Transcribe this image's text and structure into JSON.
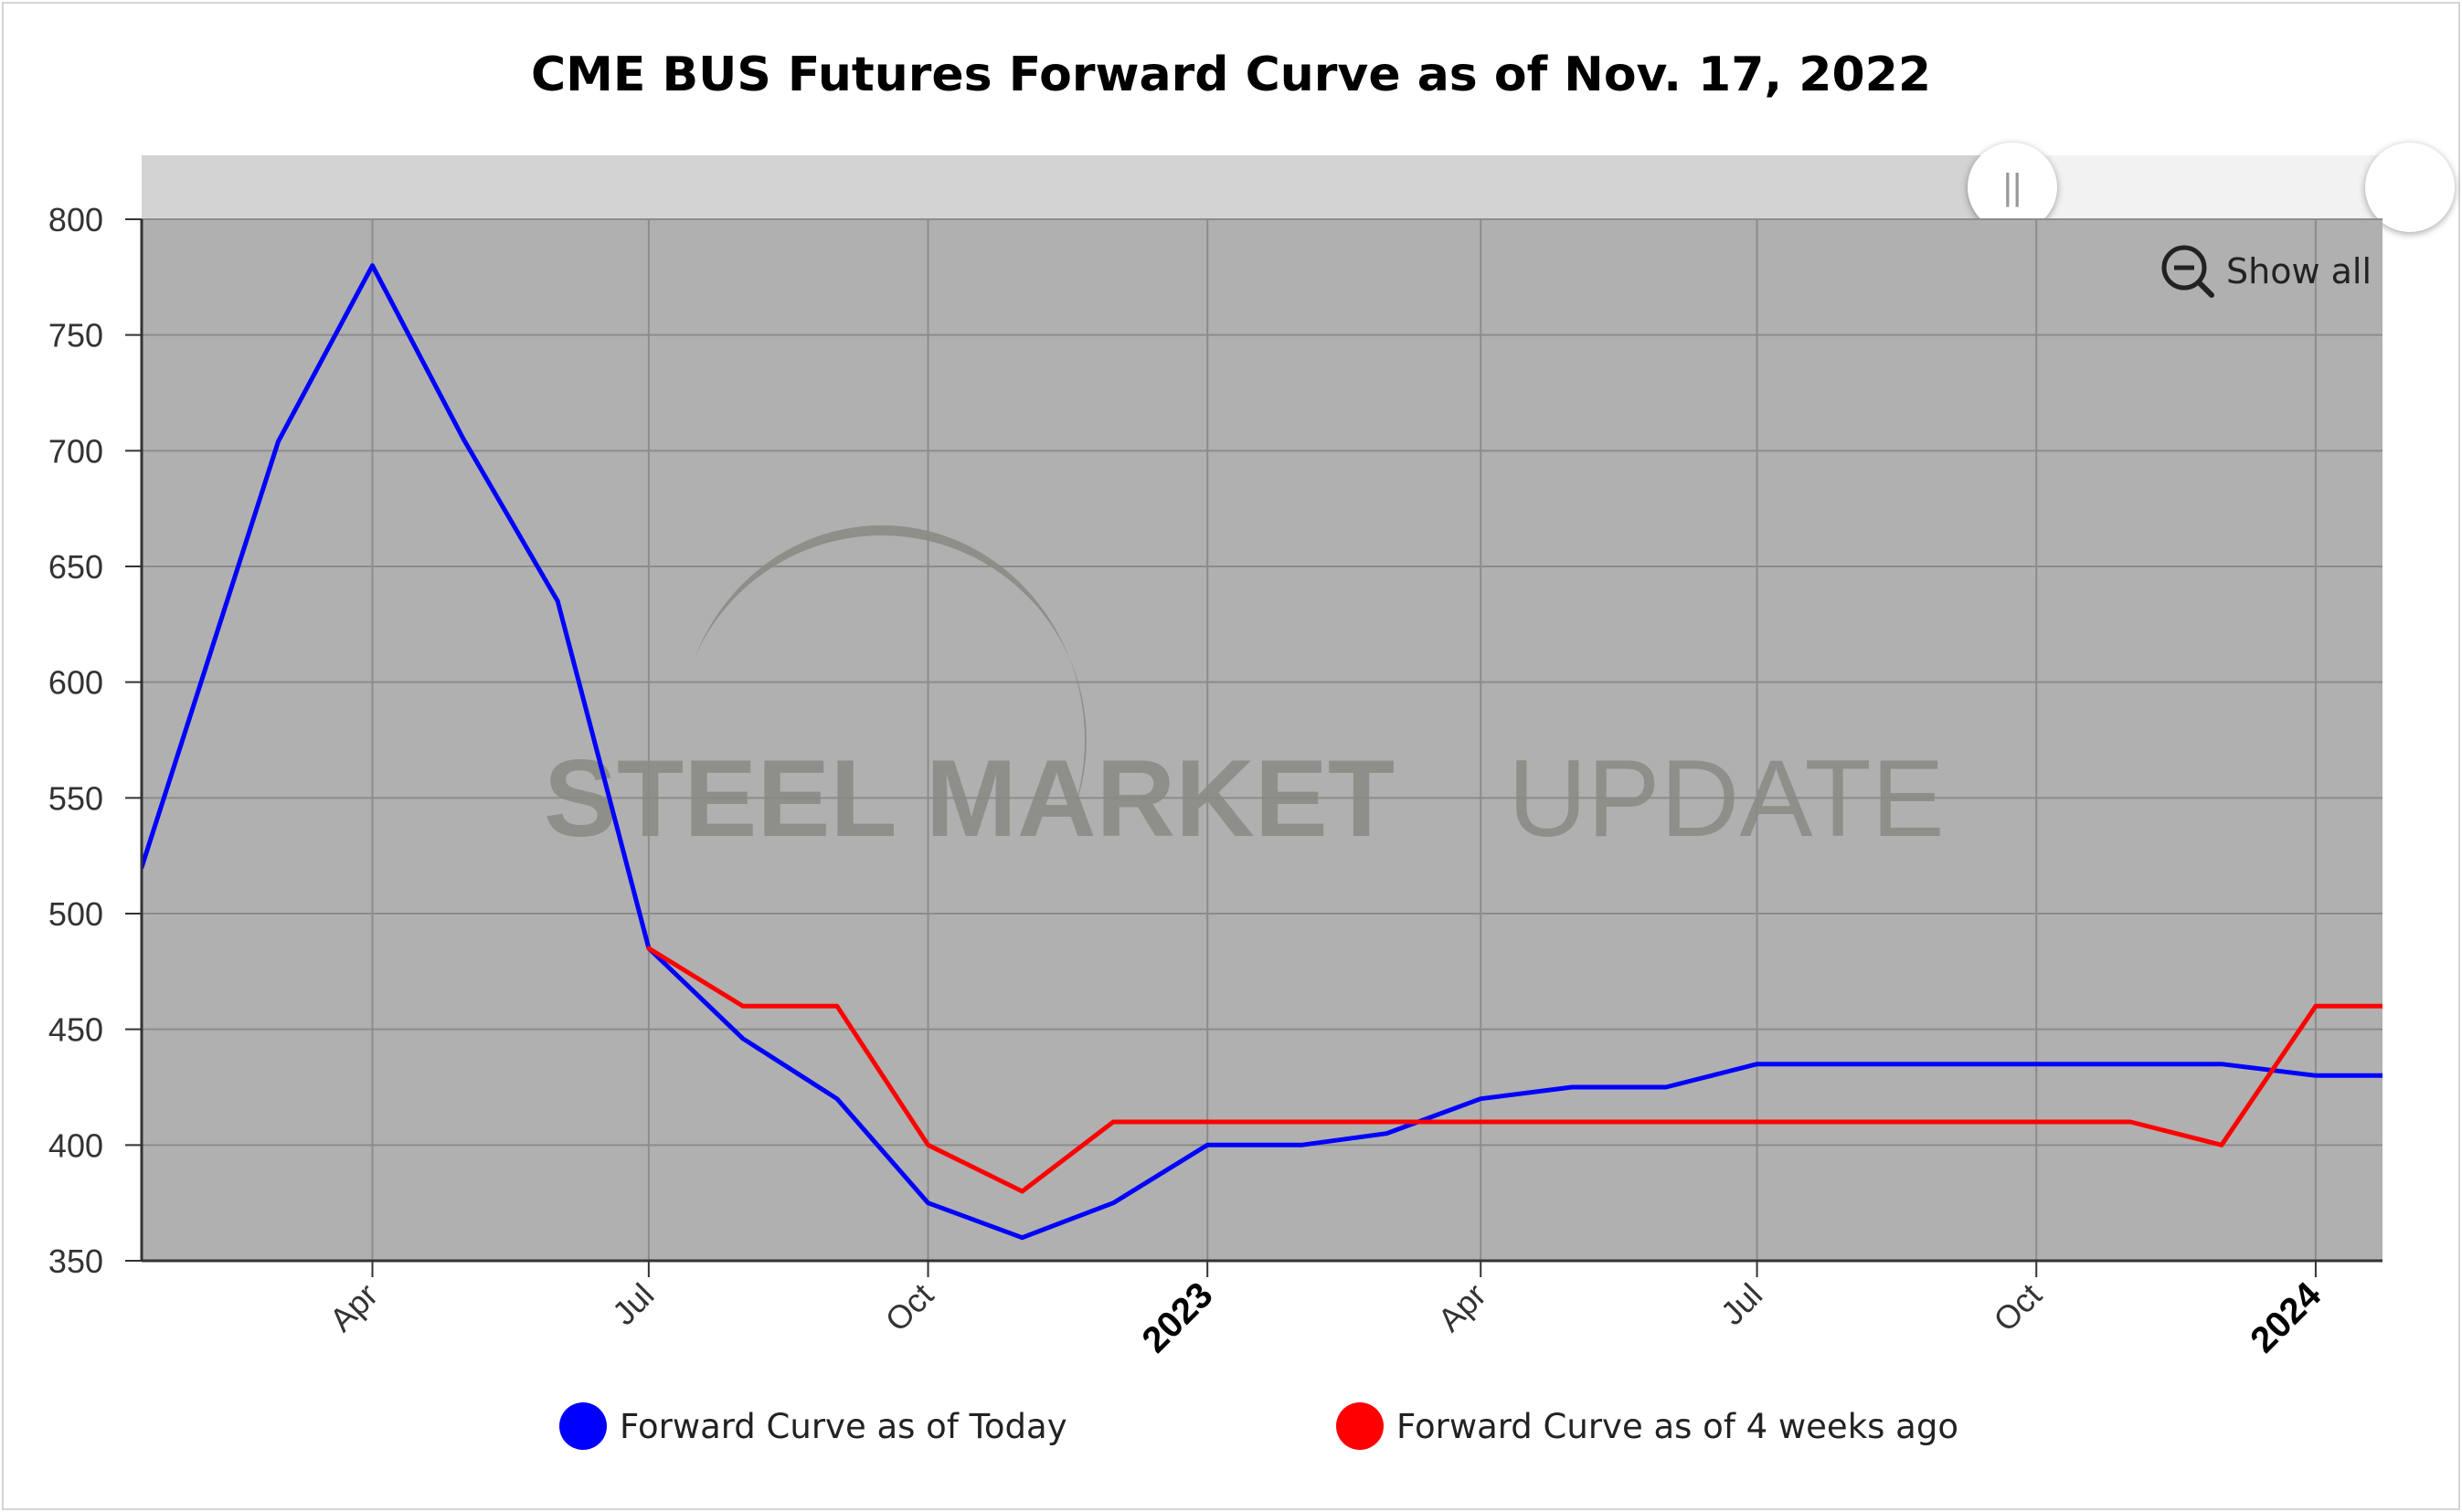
{
  "title": "CME BUS Futures Forward Curve as of Nov. 17, 2022",
  "show_all_label": "Show all",
  "watermark": {
    "bold_text": "STEEL MARKET",
    "light_text": "UPDATE"
  },
  "legend": [
    {
      "label": "Forward Curve as of Today",
      "color": "#0000ff"
    },
    {
      "label": "Forward Curve as of 4 weeks ago",
      "color": "#ff0000"
    }
  ],
  "chart_data": {
    "type": "line",
    "title": "CME BUS Futures Forward Curve as of Nov. 17, 2022",
    "xlabel": "",
    "ylabel": "",
    "ylim": [
      350,
      800
    ],
    "yticks": [
      350,
      400,
      450,
      500,
      550,
      600,
      650,
      700,
      750,
      800
    ],
    "xlim": [
      "2022-01-15",
      "2024-01-23"
    ],
    "xticks": [
      {
        "date": "2022-04-01",
        "label": "Apr",
        "bold": false
      },
      {
        "date": "2022-07-01",
        "label": "Jul",
        "bold": false
      },
      {
        "date": "2022-10-01",
        "label": "Oct",
        "bold": false
      },
      {
        "date": "2023-01-01",
        "label": "2023",
        "bold": true
      },
      {
        "date": "2023-04-01",
        "label": "Apr",
        "bold": false
      },
      {
        "date": "2023-07-01",
        "label": "Jul",
        "bold": false
      },
      {
        "date": "2023-10-01",
        "label": "Oct",
        "bold": false
      },
      {
        "date": "2024-01-01",
        "label": "2024",
        "bold": true
      }
    ],
    "grid": true,
    "background": "#b0b0b0",
    "series": [
      {
        "name": "Forward Curve as of Today",
        "color": "#0000ff",
        "points": [
          [
            "2022-01-15",
            520
          ],
          [
            "2022-03-01",
            704
          ],
          [
            "2022-04-01",
            780
          ],
          [
            "2022-05-01",
            705
          ],
          [
            "2022-06-01",
            635
          ],
          [
            "2022-07-01",
            485
          ],
          [
            "2022-08-01",
            446
          ],
          [
            "2022-09-01",
            420
          ],
          [
            "2022-10-01",
            375
          ],
          [
            "2022-11-01",
            360
          ],
          [
            "2022-12-01",
            375
          ],
          [
            "2023-01-01",
            400
          ],
          [
            "2023-02-01",
            400
          ],
          [
            "2023-03-01",
            405
          ],
          [
            "2023-04-01",
            420
          ],
          [
            "2023-05-01",
            425
          ],
          [
            "2023-06-01",
            425
          ],
          [
            "2023-07-01",
            435
          ],
          [
            "2023-08-01",
            435
          ],
          [
            "2023-09-01",
            435
          ],
          [
            "2023-10-01",
            435
          ],
          [
            "2023-11-01",
            435
          ],
          [
            "2023-12-01",
            435
          ],
          [
            "2024-01-01",
            430
          ],
          [
            "2024-01-23",
            430
          ]
        ]
      },
      {
        "name": "Forward Curve as of 4 weeks ago",
        "color": "#ff0000",
        "points": [
          [
            "2022-07-01",
            485
          ],
          [
            "2022-08-01",
            460
          ],
          [
            "2022-09-01",
            460
          ],
          [
            "2022-10-01",
            400
          ],
          [
            "2022-11-01",
            380
          ],
          [
            "2022-12-01",
            410
          ],
          [
            "2023-01-01",
            410
          ],
          [
            "2023-02-01",
            410
          ],
          [
            "2023-03-01",
            410
          ],
          [
            "2023-04-01",
            410
          ],
          [
            "2023-05-01",
            410
          ],
          [
            "2023-06-01",
            410
          ],
          [
            "2023-07-01",
            410
          ],
          [
            "2023-08-01",
            410
          ],
          [
            "2023-09-01",
            410
          ],
          [
            "2023-10-01",
            410
          ],
          [
            "2023-11-01",
            410
          ],
          [
            "2023-12-01",
            400
          ],
          [
            "2024-01-01",
            460
          ],
          [
            "2024-01-23",
            460
          ]
        ]
      }
    ]
  }
}
